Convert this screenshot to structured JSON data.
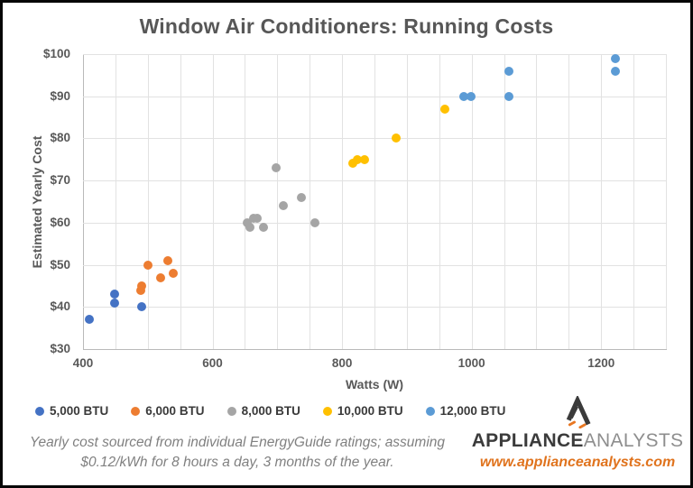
{
  "chart_data": {
    "type": "scatter",
    "title": "Window Air Conditioners: Running Costs",
    "grid": true,
    "legend_position": "bottom",
    "x_axis": {
      "label": "Watts (W)",
      "min": 400,
      "max": 1300,
      "grid_step": 50,
      "ticks": [
        {
          "v": 400,
          "t": "400"
        },
        {
          "v": 600,
          "t": "600"
        },
        {
          "v": 800,
          "t": "800"
        },
        {
          "v": 1000,
          "t": "1000"
        },
        {
          "v": 1200,
          "t": "1200"
        }
      ]
    },
    "y_axis": {
      "label": "Estimated Yearly Cost",
      "min": 30,
      "max": 100,
      "grid_step": 10,
      "ticks": [
        {
          "v": 100,
          "t": "$100"
        },
        {
          "v": 90,
          "t": "$90"
        },
        {
          "v": 80,
          "t": "$80"
        },
        {
          "v": 70,
          "t": "$70"
        },
        {
          "v": 60,
          "t": "$60"
        },
        {
          "v": 50,
          "t": "$50"
        },
        {
          "v": 40,
          "t": "$40"
        },
        {
          "v": 30,
          "t": "$30"
        }
      ]
    },
    "series": [
      {
        "name": "5,000 BTU",
        "color": "#4472C4",
        "points": [
          [
            410,
            37
          ],
          [
            449,
            43
          ],
          [
            449,
            41
          ],
          [
            490,
            40
          ]
        ]
      },
      {
        "name": "6,000 BTU",
        "color": "#ED7D31",
        "points": [
          [
            489,
            44
          ],
          [
            491,
            45
          ],
          [
            500,
            50
          ],
          [
            520,
            47
          ],
          [
            531,
            51
          ],
          [
            540,
            48
          ]
        ]
      },
      {
        "name": "8,000 BTU",
        "color": "#A5A5A5",
        "points": [
          [
            653,
            60
          ],
          [
            658,
            59
          ],
          [
            664,
            61
          ],
          [
            669,
            61
          ],
          [
            678,
            59
          ],
          [
            698,
            73
          ],
          [
            709,
            64
          ],
          [
            737,
            66
          ],
          [
            758,
            60
          ]
        ]
      },
      {
        "name": "10,000 BTU",
        "color": "#FFC000",
        "points": [
          [
            816,
            74
          ],
          [
            824,
            75
          ],
          [
            834,
            75
          ],
          [
            884,
            80
          ],
          [
            959,
            87
          ]
        ]
      },
      {
        "name": "12,000 BTU",
        "color": "#5B9BD5",
        "points": [
          [
            988,
            90
          ],
          [
            999,
            90
          ],
          [
            1058,
            96
          ],
          [
            1058,
            90
          ],
          [
            1222,
            99
          ],
          [
            1222,
            96
          ]
        ]
      }
    ]
  },
  "footnote": {
    "line1": "Yearly cost sourced from individual EnergyGuide ratings; assuming",
    "line2": "$0.12/kWh for 8 hours a day, 3 months of the year."
  },
  "branding": {
    "brand_bold": "APPLIANCE",
    "brand_light": "ANALYSTS",
    "url": "www.applianceanalysts.com",
    "logo_icon": "mountain-a-icon",
    "accent_color": "#E87722",
    "dark_color": "#3B3B3B"
  }
}
